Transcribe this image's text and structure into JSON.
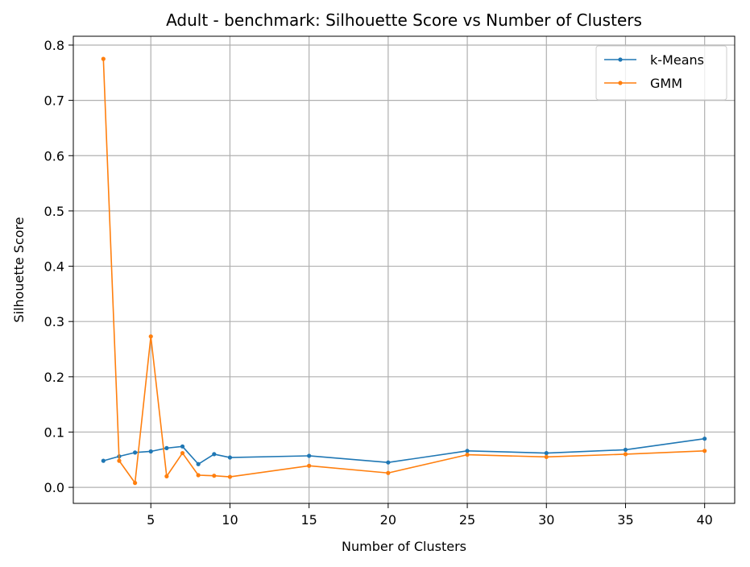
{
  "chart_data": {
    "type": "line",
    "title": "Adult - benchmark: Silhouette Score vs Number of Clusters",
    "xlabel": "Number of Clusters",
    "ylabel": "Silhouette Score",
    "xlim": [
      0.1,
      41.9
    ],
    "ylim": [
      -0.029,
      0.816
    ],
    "xticks": [
      5,
      10,
      15,
      20,
      25,
      30,
      35,
      40
    ],
    "yticks": [
      0.0,
      0.1,
      0.2,
      0.3,
      0.4,
      0.5,
      0.6,
      0.7,
      0.8
    ],
    "xtick_labels": [
      "5",
      "10",
      "15",
      "20",
      "25",
      "30",
      "35",
      "40"
    ],
    "ytick_labels": [
      "0.0",
      "0.1",
      "0.2",
      "0.3",
      "0.4",
      "0.5",
      "0.6",
      "0.7",
      "0.8"
    ],
    "grid": true,
    "legend": "top-right",
    "x": [
      2,
      3,
      4,
      5,
      6,
      7,
      8,
      9,
      10,
      15,
      20,
      25,
      30,
      35,
      40
    ],
    "series": [
      {
        "name": "k-Means",
        "color": "#1f77b4",
        "values": [
          0.048,
          0.056,
          0.063,
          0.065,
          0.071,
          0.074,
          0.042,
          0.06,
          0.054,
          0.057,
          0.045,
          0.066,
          0.062,
          0.068,
          0.088
        ]
      },
      {
        "name": "GMM",
        "color": "#ff7f0e",
        "values": [
          0.775,
          0.048,
          0.008,
          0.273,
          0.02,
          0.062,
          0.022,
          0.021,
          0.019,
          0.039,
          0.026,
          0.059,
          0.055,
          0.06,
          0.066
        ]
      }
    ]
  }
}
